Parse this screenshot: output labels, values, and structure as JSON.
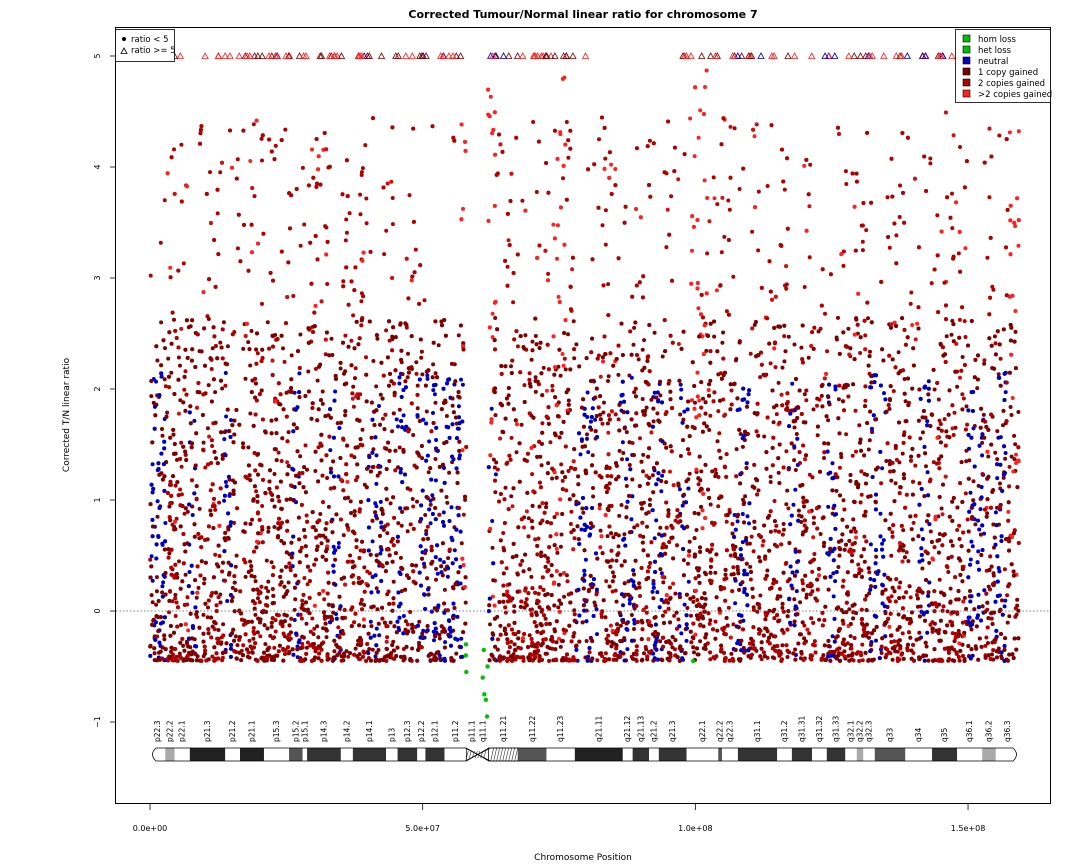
{
  "chart_data": {
    "type": "scatter",
    "title": "Corrected Tumour/Normal linear ratio for chromosome  7",
    "xlabel": "Chromosome Position",
    "ylabel": "Corrected T/N linear ratio",
    "xlim": [
      0,
      165000000
    ],
    "ylim": [
      -1.75,
      5.3
    ],
    "x_ticks": [
      {
        "value": 0,
        "label": "0.0e+00"
      },
      {
        "value": 50000000,
        "label": "5.0e+07"
      },
      {
        "value": 100000000,
        "label": "1.0e+08"
      },
      {
        "value": 150000000,
        "label": "1.5e+08"
      }
    ],
    "y_ticks": [
      {
        "value": -1,
        "label": "−1"
      },
      {
        "value": 0,
        "label": "0"
      },
      {
        "value": 1,
        "label": "1"
      },
      {
        "value": 2,
        "label": "2"
      },
      {
        "value": 3,
        "label": "3"
      },
      {
        "value": 4,
        "label": "4"
      },
      {
        "value": 5,
        "label": "5"
      }
    ],
    "reference_line_y": 0,
    "cap_value": 5,
    "chromosome_length": 159345973,
    "centromere": [
      58000000,
      62000000
    ],
    "series": [
      {
        "name": "hom loss",
        "color": "#00c000",
        "positions": [
          [
            57900000,
            -0.4
          ],
          [
            57950000,
            -0.3
          ],
          [
            58000000,
            -0.55
          ],
          [
            61000000,
            -0.6
          ],
          [
            61300000,
            -0.75
          ],
          [
            61600000,
            -0.8
          ],
          [
            61800000,
            -0.95
          ],
          [
            61900000,
            -0.5
          ],
          [
            99600000,
            -0.45
          ],
          [
            61200000,
            -0.35
          ]
        ]
      },
      {
        "name": "het loss",
        "color": "#00c000",
        "positions": []
      },
      {
        "name": "neutral",
        "color": "#0000c0",
        "density_note": "interspersed low-ratio regions",
        "regions": [
          [
            0,
            3000000
          ],
          [
            7000000,
            8500000
          ],
          [
            13500000,
            15000000
          ],
          [
            26000000,
            27500000
          ],
          [
            33000000,
            35000000
          ],
          [
            40000000,
            42500000
          ],
          [
            45000000,
            47000000
          ],
          [
            49000000,
            52000000
          ],
          [
            52000000,
            57500000
          ],
          [
            61000000,
            63500000
          ],
          [
            78000000,
            82000000
          ],
          [
            86000000,
            89000000
          ],
          [
            92000000,
            94000000
          ],
          [
            97000000,
            99000000
          ],
          [
            107000000,
            110000000
          ],
          [
            117000000,
            119000000
          ],
          [
            124000000,
            126000000
          ],
          [
            132000000,
            135000000
          ],
          [
            141000000,
            143000000
          ],
          [
            150000000,
            153000000
          ],
          [
            155000000,
            157000000
          ]
        ]
      },
      {
        "name": "1 copy gained",
        "color": "#800000",
        "range": [
          -0.45,
          2.6
        ]
      },
      {
        "name": "2 copies gained",
        "color": "#b00000",
        "range": [
          -0.4,
          4.9
        ]
      },
      {
        "name": ">2 copies gained",
        "color": "#ff2020",
        "hotspots": [
          58300000,
          62200000,
          75000000,
          100000000,
          101000000,
          158500000
        ]
      }
    ],
    "point_legend": [
      {
        "symbol": "filled-circle",
        "label": "ratio < 5"
      },
      {
        "symbol": "open-triangle",
        "label": "ratio >= 5"
      }
    ],
    "bands": [
      {
        "name": "p22.3",
        "start": 0,
        "end": 2800000,
        "stain": "gneg"
      },
      {
        "name": "p22.2",
        "start": 2800000,
        "end": 4500000,
        "stain": "gpos25"
      },
      {
        "name": "p22.1",
        "start": 4500000,
        "end": 7300000,
        "stain": "gneg"
      },
      {
        "name": "p21.3",
        "start": 7300000,
        "end": 13800000,
        "stain": "gpos100"
      },
      {
        "name": "p21.2",
        "start": 13800000,
        "end": 16500000,
        "stain": "gneg"
      },
      {
        "name": "p21.1",
        "start": 16500000,
        "end": 20900000,
        "stain": "gpos100"
      },
      {
        "name": "p15.3",
        "start": 20900000,
        "end": 25500000,
        "stain": "gneg"
      },
      {
        "name": "p15.2",
        "start": 25500000,
        "end": 28000000,
        "stain": "gpos50"
      },
      {
        "name": "p15.1",
        "start": 28000000,
        "end": 28800000,
        "stain": "gneg"
      },
      {
        "name": "p14.3",
        "start": 28800000,
        "end": 35000000,
        "stain": "gpos75"
      },
      {
        "name": "p14.2",
        "start": 35000000,
        "end": 37200000,
        "stain": "gneg"
      },
      {
        "name": "p14.1",
        "start": 37200000,
        "end": 43300000,
        "stain": "gpos75"
      },
      {
        "name": "p13",
        "start": 43300000,
        "end": 45400000,
        "stain": "gneg"
      },
      {
        "name": "p12.3",
        "start": 45400000,
        "end": 49000000,
        "stain": "gpos75"
      },
      {
        "name": "p12.2",
        "start": 49000000,
        "end": 50500000,
        "stain": "gneg"
      },
      {
        "name": "p12.1",
        "start": 50500000,
        "end": 54000000,
        "stain": "gpos75"
      },
      {
        "name": "p11.2",
        "start": 54000000,
        "end": 58000000,
        "stain": "gneg"
      },
      {
        "name": "p11.1",
        "start": 58000000,
        "end": 60100000,
        "stain": "acen"
      },
      {
        "name": "q11.1",
        "start": 60100000,
        "end": 62100000,
        "stain": "acen"
      },
      {
        "name": "q11.21",
        "start": 62100000,
        "end": 67500000,
        "stain": "gvar"
      },
      {
        "name": "q11.22",
        "start": 67500000,
        "end": 72700000,
        "stain": "gpos50"
      },
      {
        "name": "q11.23",
        "start": 72700000,
        "end": 77900000,
        "stain": "gneg"
      },
      {
        "name": "q21.11",
        "start": 77900000,
        "end": 86700000,
        "stain": "gpos100"
      },
      {
        "name": "q21.12",
        "start": 86700000,
        "end": 88500000,
        "stain": "gneg"
      },
      {
        "name": "q21.13",
        "start": 88500000,
        "end": 91500000,
        "stain": "gpos75"
      },
      {
        "name": "q21.2",
        "start": 91500000,
        "end": 93300000,
        "stain": "gneg"
      },
      {
        "name": "q21.3",
        "start": 93300000,
        "end": 98400000,
        "stain": "gpos75"
      },
      {
        "name": "q22.1",
        "start": 98400000,
        "end": 104200000,
        "stain": "gneg"
      },
      {
        "name": "q22.2",
        "start": 104200000,
        "end": 104900000,
        "stain": "gpos50"
      },
      {
        "name": "q22.3",
        "start": 104900000,
        "end": 107800000,
        "stain": "gneg"
      },
      {
        "name": "q31.1",
        "start": 107800000,
        "end": 115000000,
        "stain": "gpos75"
      },
      {
        "name": "q31.2",
        "start": 115000000,
        "end": 117700000,
        "stain": "gneg"
      },
      {
        "name": "q31.31",
        "start": 117700000,
        "end": 121400000,
        "stain": "gpos75"
      },
      {
        "name": "q31.32",
        "start": 121400000,
        "end": 124100000,
        "stain": "gneg"
      },
      {
        "name": "q31.33",
        "start": 124100000,
        "end": 127500000,
        "stain": "gpos75"
      },
      {
        "name": "q32.1",
        "start": 127500000,
        "end": 129600000,
        "stain": "gneg"
      },
      {
        "name": "q32.2",
        "start": 129600000,
        "end": 130800000,
        "stain": "gpos25"
      },
      {
        "name": "q32.3",
        "start": 130800000,
        "end": 132900000,
        "stain": "gneg"
      },
      {
        "name": "q33",
        "start": 132900000,
        "end": 138500000,
        "stain": "gpos50"
      },
      {
        "name": "q34",
        "start": 138500000,
        "end": 143400000,
        "stain": "gneg"
      },
      {
        "name": "q35",
        "start": 143400000,
        "end": 148000000,
        "stain": "gpos75"
      },
      {
        "name": "q36.1",
        "start": 148000000,
        "end": 152600000,
        "stain": "gneg"
      },
      {
        "name": "q36.2",
        "start": 152600000,
        "end": 155100000,
        "stain": "gpos25"
      },
      {
        "name": "q36.3",
        "start": 155100000,
        "end": 159345973,
        "stain": "gneg"
      }
    ]
  }
}
